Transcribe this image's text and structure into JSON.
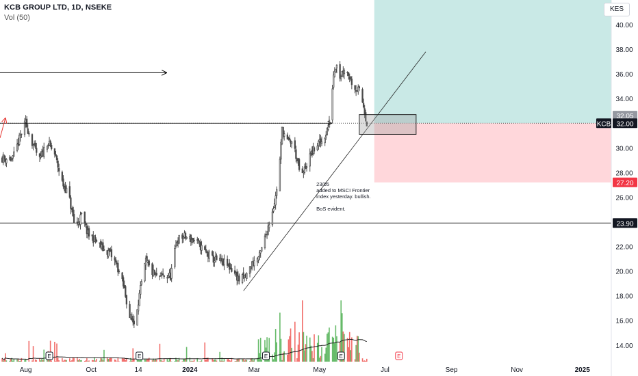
{
  "header": {
    "symbol_title": "KCB GROUP LTD, 1D, NSEKE",
    "volume_label": "Vol (50)",
    "currency": "KES"
  },
  "chart_data": {
    "type": "candlestick",
    "instrument": "KCB",
    "exchange": "NSEKE",
    "interval": "1D",
    "yaxis": {
      "ylim": [
        12.6,
        42.0
      ],
      "ticks": [
        14,
        16,
        18,
        20,
        22,
        24,
        26,
        28,
        30,
        32,
        34,
        36,
        38,
        40
      ],
      "tick_labels": [
        "14.00",
        "16.00",
        "18.00",
        "20.00",
        "22.00",
        "24.00",
        "26.00",
        "28.00",
        "30.00",
        "32.00",
        "34.00",
        "36.00",
        "38.00",
        "40.00"
      ]
    },
    "xaxis": {
      "range": [
        "2023-07-08",
        "2025-01-28"
      ],
      "ticks": [
        {
          "date": "2023-08-01",
          "label": "Aug",
          "bold": false
        },
        {
          "date": "2023-10-01",
          "label": "Oct",
          "bold": false
        },
        {
          "date": "2023-11-14",
          "label": "14",
          "bold": false
        },
        {
          "date": "2024-01-01",
          "label": "2024",
          "bold": true
        },
        {
          "date": "2024-03-01",
          "label": "Mar",
          "bold": false
        },
        {
          "date": "2024-05-01",
          "label": "May",
          "bold": false
        },
        {
          "date": "2024-07-01",
          "label": "Jul",
          "bold": false
        },
        {
          "date": "2024-09-01",
          "label": "Sep",
          "bold": false
        },
        {
          "date": "2024-11-01",
          "label": "Nov",
          "bold": false
        },
        {
          "date": "2025-01-01",
          "label": "2025",
          "bold": true
        }
      ]
    },
    "price_path": [
      [
        "2023-07-08",
        29.2
      ],
      [
        "2023-07-20",
        29.1
      ],
      [
        "2023-07-28",
        31.2
      ],
      [
        "2023-08-01",
        32.0
      ],
      [
        "2023-08-08",
        30.2
      ],
      [
        "2023-08-14",
        29.0
      ],
      [
        "2023-08-21",
        30.5
      ],
      [
        "2023-08-28",
        29.5
      ],
      [
        "2023-09-04",
        27.2
      ],
      [
        "2023-09-10",
        26.2
      ],
      [
        "2023-09-16",
        23.5
      ],
      [
        "2023-09-22",
        24.5
      ],
      [
        "2023-09-28",
        23.0
      ],
      [
        "2023-10-05",
        22.5
      ],
      [
        "2023-10-12",
        21.8
      ],
      [
        "2023-10-18",
        21.5
      ],
      [
        "2023-10-25",
        20.5
      ],
      [
        "2023-11-01",
        18.5
      ],
      [
        "2023-11-06",
        16.3
      ],
      [
        "2023-11-10",
        15.8
      ],
      [
        "2023-11-16",
        18.5
      ],
      [
        "2023-11-21",
        20.8
      ],
      [
        "2023-11-26",
        20.0
      ],
      [
        "2023-12-01",
        19.5
      ],
      [
        "2023-12-08",
        19.6
      ],
      [
        "2023-12-14",
        19.6
      ],
      [
        "2023-12-20",
        22.5
      ],
      [
        "2023-12-26",
        22.8
      ],
      [
        "2024-01-02",
        22.6
      ],
      [
        "2024-01-08",
        22.3
      ],
      [
        "2024-01-16",
        21.5
      ],
      [
        "2024-01-22",
        21.0
      ],
      [
        "2024-01-28",
        20.8
      ],
      [
        "2024-02-03",
        20.6
      ],
      [
        "2024-02-10",
        20.1
      ],
      [
        "2024-02-16",
        19.3
      ],
      [
        "2024-02-22",
        19.5
      ],
      [
        "2024-02-28",
        20.6
      ],
      [
        "2024-03-06",
        21.2
      ],
      [
        "2024-03-12",
        23.0
      ],
      [
        "2024-03-17",
        24.6
      ],
      [
        "2024-03-21",
        26.0
      ],
      [
        "2024-03-25",
        29.0
      ],
      [
        "2024-03-27",
        31.5
      ],
      [
        "2024-04-01",
        30.5
      ],
      [
        "2024-04-06",
        30.5
      ],
      [
        "2024-04-10",
        29.0
      ],
      [
        "2024-04-14",
        27.5
      ],
      [
        "2024-04-18",
        28.5
      ],
      [
        "2024-04-23",
        29.5
      ],
      [
        "2024-04-28",
        30.2
      ],
      [
        "2024-05-03",
        30.5
      ],
      [
        "2024-05-06",
        31.0
      ],
      [
        "2024-05-10",
        32.0
      ],
      [
        "2024-05-14",
        36.0
      ],
      [
        "2024-05-17",
        37.0
      ],
      [
        "2024-05-20",
        35.8
      ],
      [
        "2024-05-24",
        36.5
      ],
      [
        "2024-05-28",
        36.0
      ],
      [
        "2024-06-02",
        35.0
      ],
      [
        "2024-06-08",
        34.5
      ],
      [
        "2024-06-12",
        33.0
      ],
      [
        "2024-06-14",
        32.0
      ]
    ],
    "volume_moving_average_period": 50,
    "earnings_markers": [
      "2023-08-23",
      "2023-11-15",
      "2024-03-12",
      "2024-05-21",
      "2024-07-14"
    ],
    "levels": {
      "upper_price_label": "32.05",
      "last_price": 32.0,
      "last_price_label": "32.00",
      "last_price_tag": "KCB",
      "stop_loss": 27.2,
      "stop_loss_label": "27.20",
      "support": 23.9,
      "support_label": "23.90",
      "target": 42.0
    },
    "annotations": {
      "note_lines": [
        "23/05",
        "added to MSCI Frontier",
        "index yesterday. bullish.",
        "",
        "BoS evident."
      ]
    },
    "colors": {
      "up": "#26a69a",
      "down": "#ef5350",
      "candle": "#4a4a4a",
      "volume_up": "#4caf50",
      "volume_down": "#ef5350",
      "volume_ma": "#202020",
      "profit_zone": "#b2dfdb",
      "loss_zone": "#ffcdd2",
      "stop_label": "#f23645",
      "price_label": "#131722",
      "grey_label": "#9598a1",
      "earnings_active": "#131722",
      "earnings_future": "#f23645"
    }
  }
}
